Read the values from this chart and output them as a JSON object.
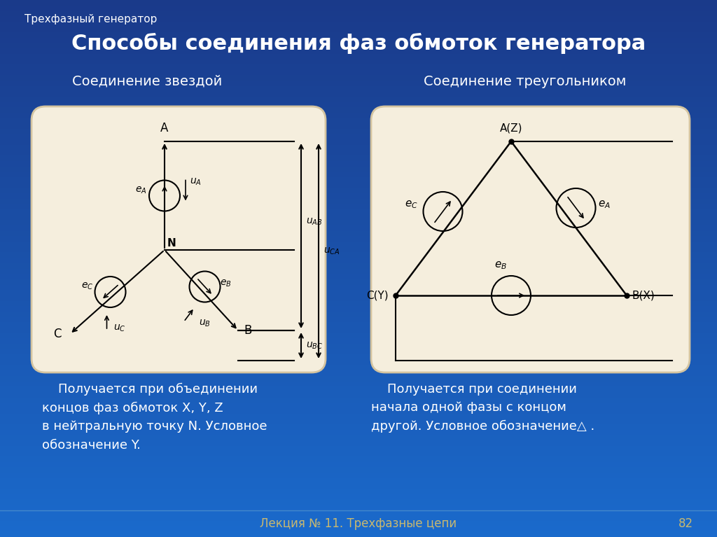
{
  "bg_color": "#2255bb",
  "bg_gradient_top": "#1a3a8a",
  "bg_gradient_bottom": "#1155cc",
  "panel_color": "#f5eedd",
  "panel_edge_color": "#d4c4a0",
  "title_text": "Способы соединения фаз обмоток генератора",
  "subtitle_text": "Трехфазный генератор",
  "left_title": "Соединение звездой",
  "right_title": "Соединение треугольником",
  "footer_text": "Лекция № 11. Трехфазные цепи",
  "footer_page": "82",
  "left_desc": "    Получается при объединении\nконцов фаз обмоток X, Y, Z\nв нейтральную точку N. Условное\nобозначение Y.",
  "right_desc": "    Получается при соединении\nначала одной фазы с концом\nдругой. Условное обозначение△ .",
  "line_color": "#000000",
  "arrow_color": "#000000",
  "text_color": "#000000",
  "white_text": "#ffffff",
  "gold_text": "#c8b870"
}
